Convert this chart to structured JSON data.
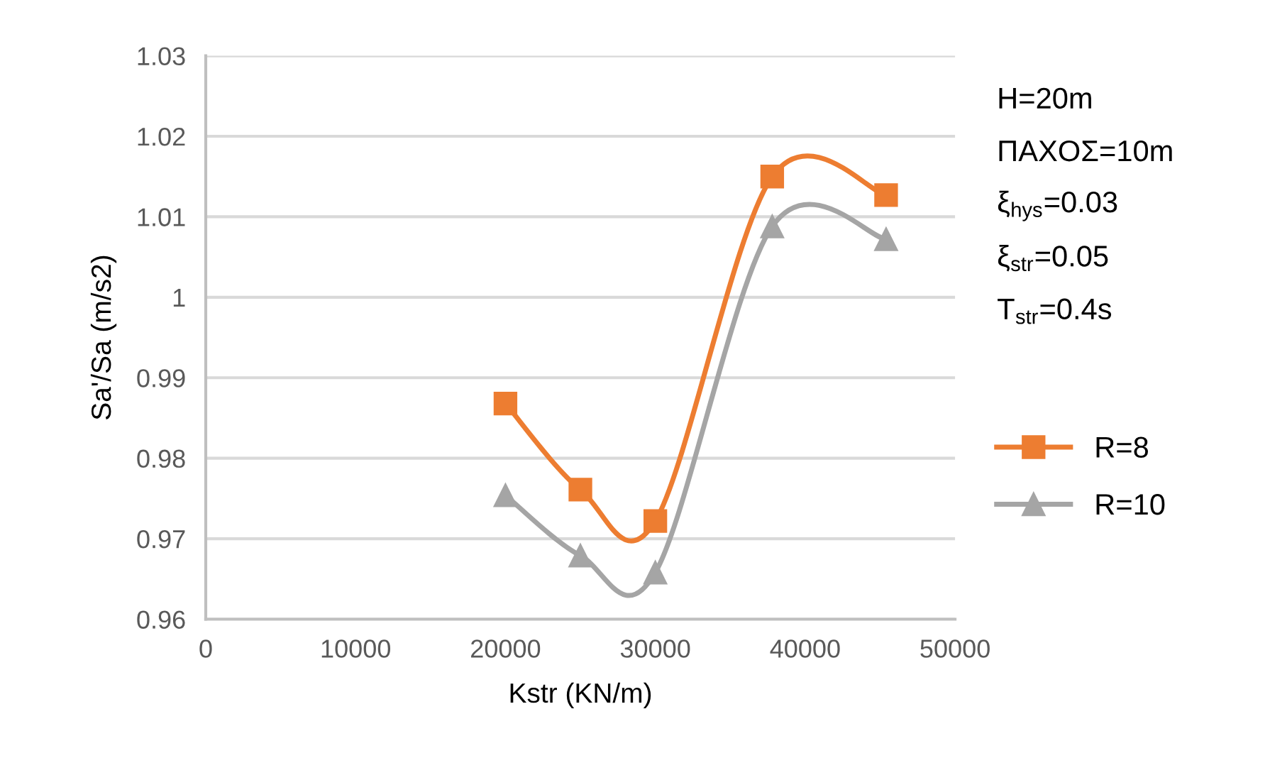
{
  "chart_data": {
    "type": "line",
    "xlabel": "Kstr (KN/m)",
    "ylabel": "Sa'/Sa (m/s2)",
    "xlim": [
      0,
      50000
    ],
    "xticks": [
      0,
      10000,
      20000,
      30000,
      40000,
      50000
    ],
    "ylim": [
      0.96,
      1.03
    ],
    "yticks": [
      0.96,
      0.97,
      0.98,
      0.99,
      {
        "value": 1.0,
        "label": "1"
      },
      1.01,
      1.02,
      1.03
    ],
    "grid": "y",
    "legend": "right",
    "line_style": "solid",
    "annotations": [
      "H=20m",
      "ΠΑΧΟΣ=10m",
      "ξ$_{hys}$=0.03",
      "ξ$_{str}$=0.05",
      "T$_{str}$=0.4s"
    ],
    "series": [
      {
        "name": "R=8",
        "color": "#ed7d31",
        "marker": "square",
        "x": [
          20000,
          25000,
          30000,
          37800,
          45400
        ],
        "values": [
          0.9868,
          0.9761,
          0.9722,
          1.015,
          1.0127
        ]
      },
      {
        "name": "R=10",
        "color": "#a5a5a5",
        "marker": "triangle",
        "x": [
          20000,
          25000,
          30000,
          37800,
          45400
        ],
        "values": [
          0.9754,
          0.9679,
          0.9658,
          1.0088,
          1.0072
        ]
      }
    ]
  }
}
